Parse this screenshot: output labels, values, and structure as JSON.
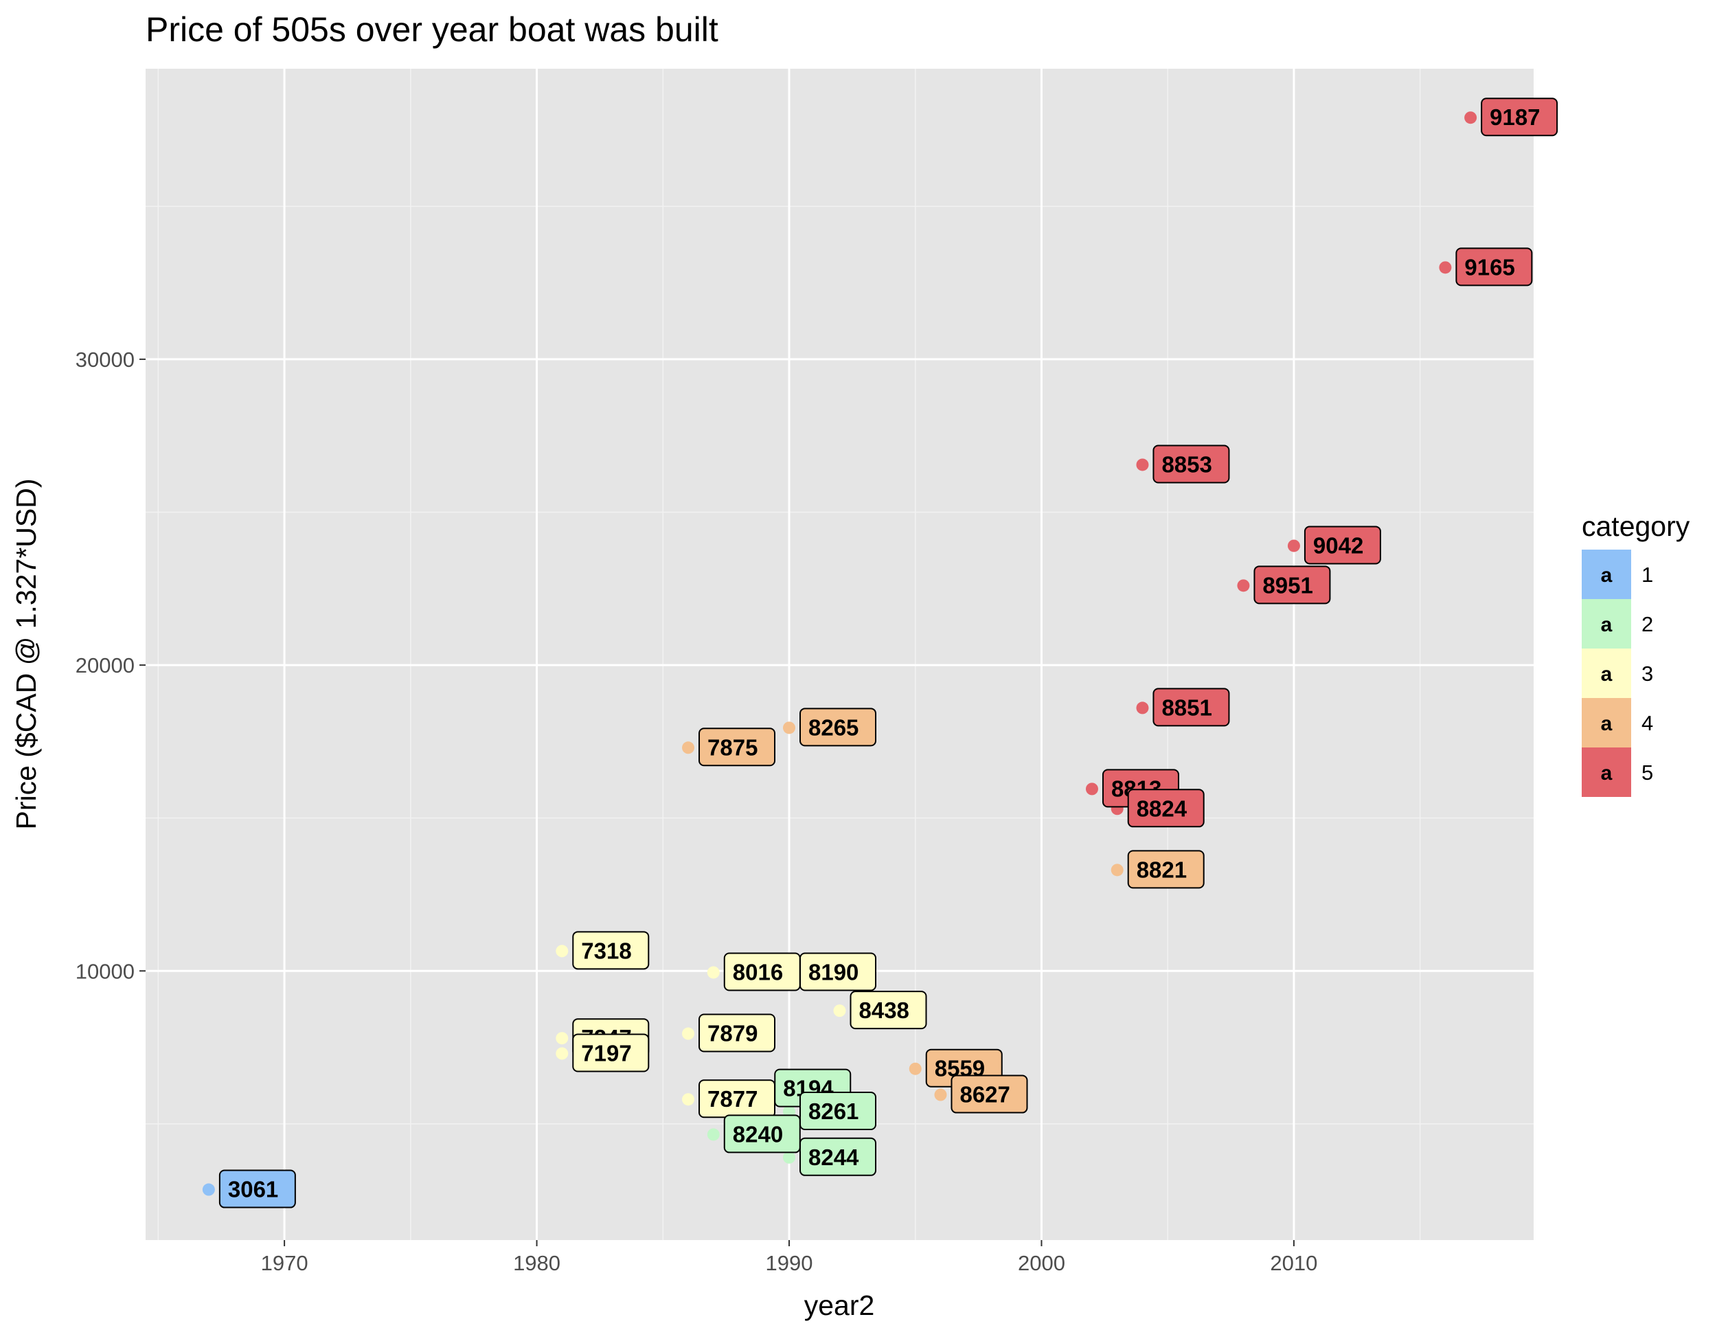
{
  "chart_data": {
    "type": "scatter",
    "title": "Price of 505s over year boat was built",
    "xlabel": "year2",
    "ylabel": "Price ($CAD @ 1.327*USD)",
    "xlim": [
      1964.5,
      2019.5
    ],
    "ylim": [
      1200,
      39500
    ],
    "x_ticks": [
      1970,
      1980,
      1990,
      2000,
      2010
    ],
    "x_tick_labels": [
      "1970",
      "1980",
      "1990",
      "2000",
      "2010"
    ],
    "y_ticks": [
      10000,
      20000,
      30000
    ],
    "y_tick_labels": [
      "10000",
      "20000",
      "30000"
    ],
    "grid": true,
    "legend": {
      "title": "category",
      "position": "right",
      "key_glyph": "a",
      "entries": [
        {
          "label": "1",
          "color": "#8fc1f7"
        },
        {
          "label": "2",
          "color": "#c2f7c8"
        },
        {
          "label": "3",
          "color": "#fffdc7"
        },
        {
          "label": "4",
          "color": "#f4c08e"
        },
        {
          "label": "5",
          "color": "#e3636a"
        }
      ]
    },
    "points": [
      {
        "x": 1967,
        "y": 2850,
        "label": "3061",
        "category": "1"
      },
      {
        "x": 1981,
        "y": 10650,
        "label": "7318",
        "category": "3"
      },
      {
        "x": 1981,
        "y": 7800,
        "label": "7247",
        "category": "3"
      },
      {
        "x": 1981,
        "y": 7300,
        "label": "7197",
        "category": "3"
      },
      {
        "x": 1986,
        "y": 7950,
        "label": "7879",
        "category": "3"
      },
      {
        "x": 1986,
        "y": 5800,
        "label": "7877",
        "category": "3"
      },
      {
        "x": 1986,
        "y": 17300,
        "label": "7875",
        "category": "4"
      },
      {
        "x": 1987,
        "y": 9950,
        "label": "8016",
        "category": "3"
      },
      {
        "x": 1987,
        "y": 4650,
        "label": "8240",
        "category": "2"
      },
      {
        "x": 1989,
        "y": 6150,
        "label": "8194",
        "category": "2"
      },
      {
        "x": 1990,
        "y": 17950,
        "label": "8265",
        "category": "4"
      },
      {
        "x": 1990,
        "y": 9950,
        "label": "8190",
        "category": "3"
      },
      {
        "x": 1990,
        "y": 5400,
        "label": "8261",
        "category": "2"
      },
      {
        "x": 1990,
        "y": 3900,
        "label": "8244",
        "category": "2"
      },
      {
        "x": 1992,
        "y": 8700,
        "label": "8438",
        "category": "3"
      },
      {
        "x": 1995,
        "y": 6800,
        "label": "8559",
        "category": "4"
      },
      {
        "x": 1996,
        "y": 5950,
        "label": "8627",
        "category": "4"
      },
      {
        "x": 2002,
        "y": 15950,
        "label": "8813",
        "category": "5"
      },
      {
        "x": 2003,
        "y": 15300,
        "label": "8824",
        "category": "5"
      },
      {
        "x": 2003,
        "y": 13300,
        "label": "8821",
        "category": "4"
      },
      {
        "x": 2004,
        "y": 26550,
        "label": "8853",
        "category": "5"
      },
      {
        "x": 2004,
        "y": 18600,
        "label": "8851",
        "category": "5"
      },
      {
        "x": 2008,
        "y": 22600,
        "label": "8951",
        "category": "5"
      },
      {
        "x": 2010,
        "y": 23900,
        "label": "9042",
        "category": "5"
      },
      {
        "x": 2016,
        "y": 33000,
        "label": "9165",
        "category": "5"
      },
      {
        "x": 2017,
        "y": 37900,
        "label": "9187",
        "category": "5"
      }
    ]
  }
}
